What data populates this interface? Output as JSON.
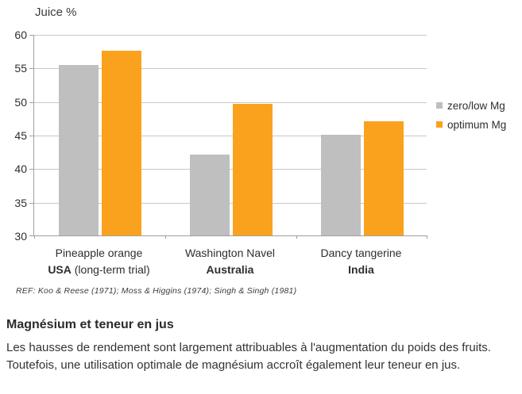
{
  "chart_data": {
    "type": "bar",
    "title": "Juice %",
    "ylabel": "Juice %",
    "ylim": [
      30,
      60
    ],
    "yticks": [
      60,
      55,
      50,
      45,
      40,
      35,
      30
    ],
    "grid": true,
    "legend_position": "right",
    "categories": [
      {
        "label": "Pineapple orange",
        "country": "USA",
        "note": " (long-term trial)"
      },
      {
        "label": "Washington Navel",
        "country": "Australia",
        "note": ""
      },
      {
        "label": "Dancy tangerine",
        "country": "India",
        "note": ""
      }
    ],
    "series": [
      {
        "name": "zero/low Mg",
        "color": "#BFBFBF",
        "values": [
          55.4,
          42.1,
          45.0
        ]
      },
      {
        "name": "optimum Mg",
        "color": "#FAA21E",
        "values": [
          57.5,
          49.6,
          47.0
        ]
      }
    ],
    "reference": "REF: Koo & Reese (1971); Moss & Higgins (1974); Singh & Singh (1981)"
  },
  "caption": {
    "heading": "Magnésium et teneur en jus",
    "body": "Les hausses de rendement sont largement attribuables à l'augmentation du poids des fruits. Toutefois, une utilisation optimale de magnésium accroît également leur teneur en jus."
  },
  "colors": {
    "bar_gray": "#BFBFBF",
    "bar_orange": "#FAA21E",
    "gridline": "#C8C8C8",
    "axis": "#9E9E9E"
  }
}
